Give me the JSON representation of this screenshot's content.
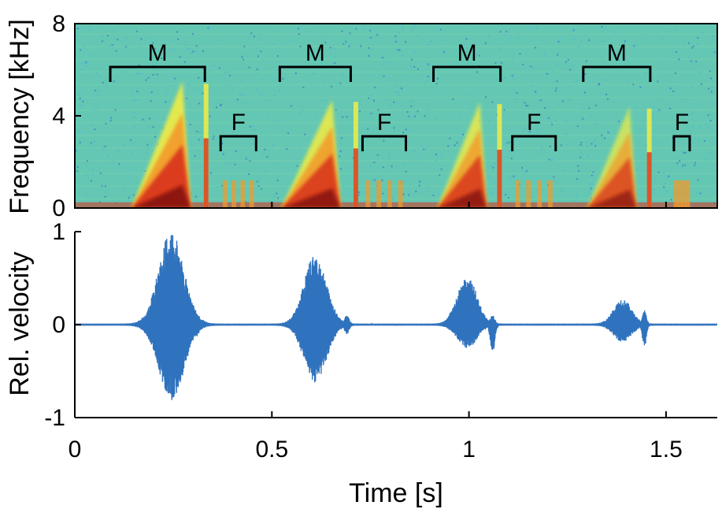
{
  "chart_data": [
    {
      "type": "heatmap",
      "ylabel": "Frequency [kHz]",
      "xlim": [
        0,
        1.63
      ],
      "ylim": [
        0,
        8
      ],
      "ytick_labels": [
        "0",
        "4",
        "8"
      ],
      "yticks": [
        0,
        4,
        8
      ],
      "colormap": [
        "#2f62c4",
        "#48b6d8",
        "#7fd4a8",
        "#f1ec45",
        "#f39a2a",
        "#d8321e",
        "#7a0c0c"
      ],
      "background_color": "#63c7b4",
      "segments": [
        {
          "label": "M",
          "t_start": 0.09,
          "t_end": 0.33
        },
        {
          "label": "F",
          "t_start": 0.37,
          "t_end": 0.46
        },
        {
          "label": "M",
          "t_start": 0.52,
          "t_end": 0.7
        },
        {
          "label": "F",
          "t_start": 0.73,
          "t_end": 0.84
        },
        {
          "label": "M",
          "t_start": 0.91,
          "t_end": 1.08
        },
        {
          "label": "F",
          "t_start": 1.11,
          "t_end": 1.22
        },
        {
          "label": "M",
          "t_start": 1.29,
          "t_end": 1.46
        },
        {
          "label": "F",
          "t_start": 1.52,
          "t_end": 1.56
        }
      ],
      "energy_bursts": [
        {
          "t_center": 0.24,
          "t_width": 0.06,
          "f_max": 5.5,
          "intensity": 1.0
        },
        {
          "t_center": 0.62,
          "t_width": 0.06,
          "f_max": 4.7,
          "intensity": 0.95
        },
        {
          "t_center": 1.0,
          "t_width": 0.05,
          "f_max": 4.6,
          "intensity": 0.9
        },
        {
          "t_center": 1.38,
          "t_width": 0.05,
          "f_max": 4.4,
          "intensity": 0.8
        }
      ]
    },
    {
      "type": "line",
      "xlabel": "Time [s]",
      "ylabel": "Rel. velocity",
      "xlim": [
        0,
        1.63
      ],
      "ylim": [
        -1,
        1
      ],
      "xticks": [
        0,
        0.5,
        1,
        1.5
      ],
      "xtick_labels": [
        "0",
        "0.5",
        "1",
        "1.5"
      ],
      "yticks": [
        -1,
        0,
        1
      ],
      "ytick_labels": [
        "-1",
        "0",
        "1"
      ],
      "color": "#2f72bd",
      "bursts": [
        {
          "t_center": 0.245,
          "t_width": 0.045,
          "pos_peak": 1.0,
          "neg_peak": -0.8
        },
        {
          "t_center": 0.31,
          "t_width": 0.008,
          "pos_peak": 0.12,
          "neg_peak": -0.12
        },
        {
          "t_center": 0.61,
          "t_width": 0.04,
          "pos_peak": 0.75,
          "neg_peak": -0.62
        },
        {
          "t_center": 0.69,
          "t_width": 0.008,
          "pos_peak": 0.1,
          "neg_peak": -0.1
        },
        {
          "t_center": 0.995,
          "t_width": 0.035,
          "pos_peak": 0.52,
          "neg_peak": -0.25
        },
        {
          "t_center": 1.06,
          "t_width": 0.008,
          "pos_peak": 0.1,
          "neg_peak": -0.3
        },
        {
          "t_center": 1.39,
          "t_width": 0.032,
          "pos_peak": 0.27,
          "neg_peak": -0.18
        },
        {
          "t_center": 1.445,
          "t_width": 0.007,
          "pos_peak": 0.15,
          "neg_peak": -0.25
        }
      ]
    }
  ]
}
